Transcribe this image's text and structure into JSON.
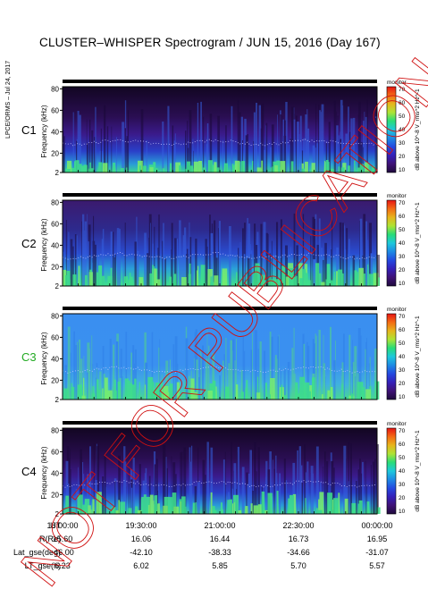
{
  "title": "CLUSTER–WHISPER Spectrogram / JUN 15, 2016 (Day 167)",
  "side_note": "LPCE/ORMS – Jul 24, 2017",
  "watermark": "NOT FOR PUBLICATION",
  "colors": {
    "background_low": "#1a0a3a",
    "accent_green": "#22c55e",
    "c3_label": "#22aa22"
  },
  "chart_data": [
    {
      "type": "heatmap",
      "panel": "C1",
      "label_color": "#000000",
      "ylabel": "Frequency (kHz)",
      "ylim": [
        2,
        82
      ],
      "yticks": [
        2,
        20,
        40,
        60,
        80
      ],
      "colorbar": {
        "ticks": [
          10,
          20,
          30,
          40,
          50,
          60,
          70
        ],
        "label": "dB above 10^-8 V_rms^2 Hz^-1",
        "tag": "monitor"
      }
    },
    {
      "type": "heatmap",
      "panel": "C2",
      "label_color": "#000000",
      "ylabel": "Frequency (kHz)",
      "ylim": [
        2,
        82
      ],
      "yticks": [
        2,
        20,
        40,
        60,
        80
      ],
      "colorbar": {
        "ticks": [
          10,
          20,
          30,
          40,
          50,
          60,
          70
        ],
        "label": "dB above 10^-8 V_rms^2 Hz^-1",
        "tag": "monitor"
      }
    },
    {
      "type": "heatmap",
      "panel": "C3",
      "label_color": "#22aa22",
      "ylabel": "Frequency (kHz)",
      "ylim": [
        2,
        82
      ],
      "yticks": [
        2,
        20,
        40,
        60,
        80
      ],
      "colorbar": {
        "ticks": [
          10,
          20,
          30,
          40,
          50,
          60,
          70
        ],
        "label": "dB above 10^-8 V_rms^2 Hz^-1",
        "tag": "monitor"
      }
    },
    {
      "type": "heatmap",
      "panel": "C4",
      "label_color": "#000000",
      "ylabel": "Frequency (kHz)",
      "ylim": [
        2,
        82
      ],
      "yticks": [
        2,
        20,
        40,
        60,
        80
      ],
      "colorbar": {
        "ticks": [
          10,
          20,
          30,
          40,
          50,
          60,
          70
        ],
        "label": "dB above 10^-8 V_rms^2 Hz^-1",
        "tag": "monitor"
      }
    }
  ],
  "bottom_axis": {
    "rows": [
      {
        "label": "UT",
        "values": [
          "18:00:00",
          "19:30:00",
          "21:00:00",
          "22:30:00",
          "00:00:00"
        ]
      },
      {
        "label": "R(Re)",
        "values": [
          "15.60",
          "16.06",
          "16.44",
          "16.73",
          "16.95"
        ]
      },
      {
        "label": "Lat_gse(deg)",
        "values": [
          "-46.00",
          "-42.10",
          "-38.33",
          "-34.66",
          "-31.07"
        ]
      },
      {
        "label": "LT_gse(h)",
        "values": [
          "6.23",
          "6.02",
          "5.85",
          "5.70",
          "5.57"
        ]
      }
    ]
  }
}
